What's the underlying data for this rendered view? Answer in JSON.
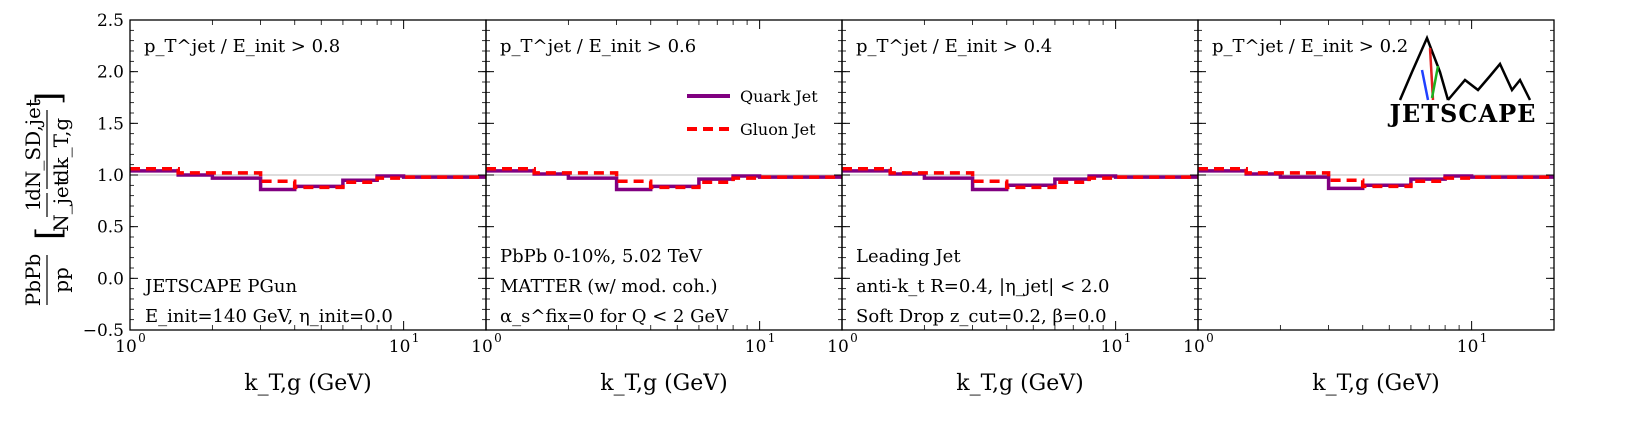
{
  "figure": {
    "ylabel_lines": [
      "PbPb",
      "pp",
      "1",
      "N_jet",
      "dN_SD,jet",
      "dk_T,g"
    ],
    "xlabel": "k_T,g (GeV)",
    "logo_text": "JETSCAPE"
  },
  "legend": {
    "items": [
      {
        "label": "Quark Jet",
        "color": "#800080",
        "style": "solid"
      },
      {
        "label": "Gluon Jet",
        "color": "#ff0000",
        "style": "dashed"
      }
    ]
  },
  "annotations": {
    "left_panel": [
      "JETSCAPE PGun",
      "E_init=140 GeV, η_init=0.0"
    ],
    "second_panel": [
      "PbPb 0-10%, 5.02 TeV",
      "MATTER (w/ mod. coh.)",
      "α_s^fix=0 for Q < 2 GeV"
    ],
    "third_panel": [
      "Leading Jet",
      "anti-k_t R=0.4, |η_jet| < 2.0",
      "Soft Drop z_cut=0.2, β=0.0"
    ]
  },
  "chart_data": [
    {
      "type": "line",
      "panel_title": "p_T^jet / E_init > 0.8",
      "xscale": "log",
      "xlim": [
        1,
        20
      ],
      "ylim": [
        -0.5,
        2.5
      ],
      "yticks": [
        -0.5,
        0.0,
        0.5,
        1.0,
        1.5,
        2.0,
        2.5
      ],
      "bin_edges": [
        1,
        1.5,
        2,
        3,
        4,
        6,
        8,
        10,
        20
      ],
      "series": [
        {
          "name": "Quark Jet",
          "values": [
            1.04,
            1.0,
            0.97,
            0.86,
            0.89,
            0.95,
            0.99,
            0.98
          ]
        },
        {
          "name": "Gluon Jet",
          "values": [
            1.06,
            1.02,
            1.02,
            0.94,
            0.88,
            0.93,
            0.97,
            0.98
          ]
        }
      ]
    },
    {
      "type": "line",
      "panel_title": "p_T^jet / E_init > 0.6",
      "xscale": "log",
      "xlim": [
        1,
        20
      ],
      "ylim": [
        -0.5,
        2.5
      ],
      "bin_edges": [
        1,
        1.5,
        2,
        3,
        4,
        6,
        8,
        10,
        20
      ],
      "series": [
        {
          "name": "Quark Jet",
          "values": [
            1.04,
            1.01,
            0.97,
            0.86,
            0.89,
            0.96,
            0.99,
            0.98
          ]
        },
        {
          "name": "Gluon Jet",
          "values": [
            1.06,
            1.02,
            1.02,
            0.94,
            0.88,
            0.93,
            0.97,
            0.98
          ]
        }
      ]
    },
    {
      "type": "line",
      "panel_title": "p_T^jet / E_init > 0.4",
      "xscale": "log",
      "xlim": [
        1,
        20
      ],
      "ylim": [
        -0.5,
        2.5
      ],
      "bin_edges": [
        1,
        1.5,
        2,
        3,
        4,
        6,
        8,
        10,
        20
      ],
      "series": [
        {
          "name": "Quark Jet",
          "values": [
            1.04,
            1.01,
            0.97,
            0.86,
            0.9,
            0.96,
            0.99,
            0.98
          ]
        },
        {
          "name": "Gluon Jet",
          "values": [
            1.06,
            1.02,
            1.02,
            0.94,
            0.88,
            0.93,
            0.97,
            0.98
          ]
        }
      ]
    },
    {
      "type": "line",
      "panel_title": "p_T^jet / E_init > 0.2",
      "xscale": "log",
      "xlim": [
        1,
        20
      ],
      "ylim": [
        -0.5,
        2.5
      ],
      "bin_edges": [
        1,
        1.5,
        2,
        3,
        4,
        6,
        8,
        10,
        20
      ],
      "series": [
        {
          "name": "Quark Jet",
          "values": [
            1.04,
            1.01,
            0.98,
            0.87,
            0.9,
            0.96,
            0.99,
            0.98
          ]
        },
        {
          "name": "Gluon Jet",
          "values": [
            1.06,
            1.02,
            1.02,
            0.95,
            0.89,
            0.94,
            0.97,
            0.98
          ]
        }
      ]
    }
  ]
}
